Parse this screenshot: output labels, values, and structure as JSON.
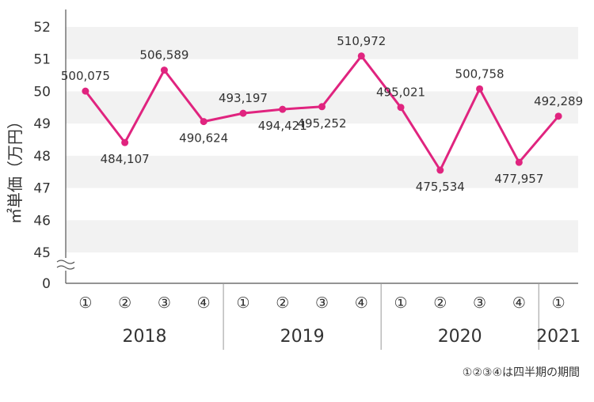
{
  "chart_data": {
    "type": "line",
    "ylabel": "㎡単価（万円）",
    "yticks": [
      "0",
      "45",
      "46",
      "47",
      "48",
      "49",
      "50",
      "51",
      "52"
    ],
    "ylim": [
      45,
      52
    ],
    "axis_break": true,
    "grid": true,
    "line_color": "#e0247f",
    "band_color": "#f2f2f2",
    "categories": [
      "①",
      "②",
      "③",
      "④",
      "①",
      "②",
      "③",
      "④",
      "①",
      "②",
      "③",
      "④",
      "①"
    ],
    "years": [
      {
        "label": "2018",
        "count": 4
      },
      {
        "label": "2019",
        "count": 4
      },
      {
        "label": "2020",
        "count": 4
      },
      {
        "label": "2021",
        "count": 1
      }
    ],
    "series": [
      {
        "values": [
          50.0075,
          48.4107,
          50.6589,
          49.0624,
          49.3197,
          49.4421,
          49.5252,
          51.0972,
          49.5021,
          47.5534,
          50.0758,
          47.7957,
          49.2289
        ],
        "labels": [
          "500,075",
          "484,107",
          "506,589",
          "490,624",
          "493,197",
          "494,421",
          "495,252",
          "510,972",
          "495,021",
          "475,534",
          "500,758",
          "477,957",
          "492,289"
        ]
      }
    ],
    "footnote": "①②③④は四半期の期間"
  }
}
